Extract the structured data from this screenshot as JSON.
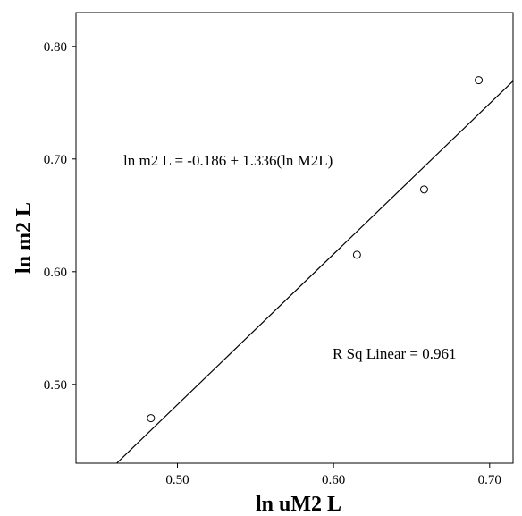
{
  "chart_data": {
    "type": "scatter",
    "xlabel": "ln uM2 L",
    "ylabel": "ln m2 L",
    "xlim": [
      0.435,
      0.715
    ],
    "ylim": [
      0.43,
      0.83
    ],
    "x_ticks": [
      0.5,
      0.6,
      0.7
    ],
    "y_ticks": [
      0.5,
      0.6,
      0.7,
      0.8
    ],
    "x_tick_labels": [
      "0.50",
      "0.60",
      "0.70"
    ],
    "y_tick_labels": [
      "0.50",
      "0.60",
      "0.70",
      "0.80"
    ],
    "grid": false,
    "points": [
      {
        "x": 0.483,
        "y": 0.47
      },
      {
        "x": 0.615,
        "y": 0.615
      },
      {
        "x": 0.658,
        "y": 0.673
      },
      {
        "x": 0.693,
        "y": 0.77
      }
    ],
    "fit_line": {
      "intercept": -0.186,
      "slope": 1.336
    },
    "annotations": {
      "equation": "ln m2 L = -0.186 + 1.336(ln M2L)",
      "r_squared": "R Sq Linear = 0.961"
    }
  }
}
